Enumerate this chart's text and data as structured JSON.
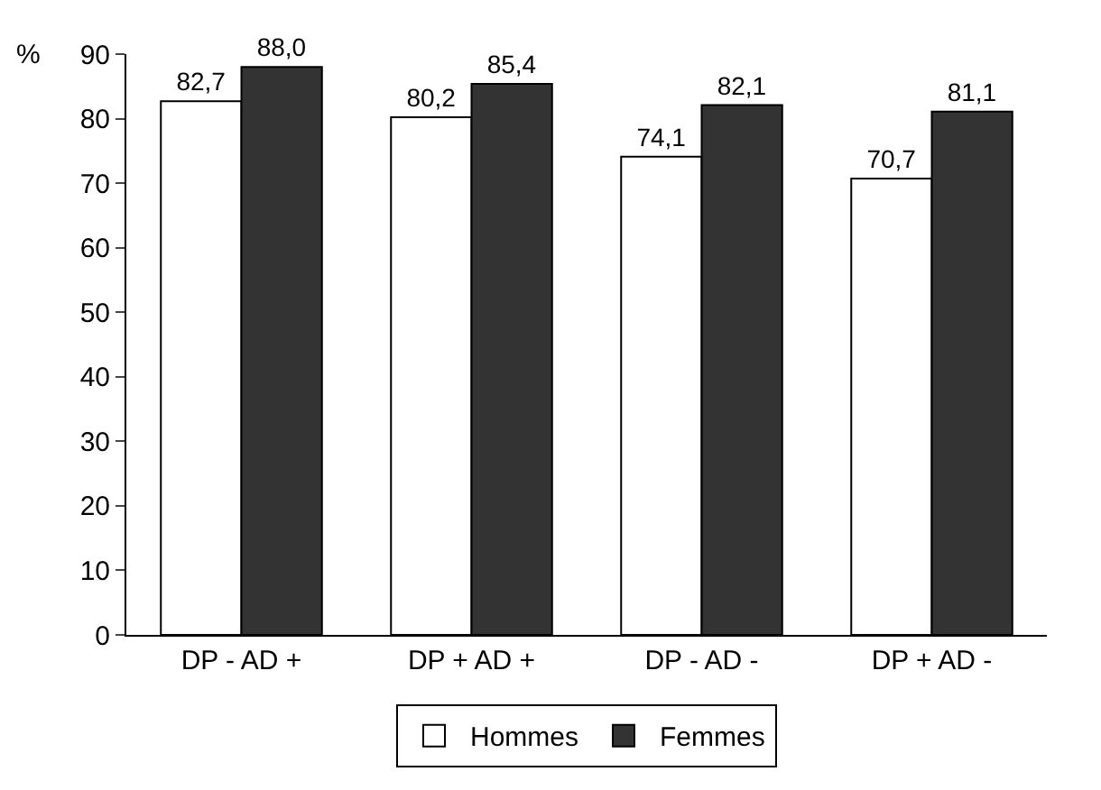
{
  "chart_data": {
    "type": "bar",
    "ylabel": "%",
    "categories": [
      "DP - AD +",
      "DP + AD +",
      "DP - AD -",
      "DP + AD -"
    ],
    "series": [
      {
        "name": "Hommes",
        "color": "#ffffff",
        "values": [
          82.7,
          80.2,
          74.1,
          70.7
        ],
        "value_labels": [
          "82,7",
          "80,2",
          "74,1",
          "70,7"
        ]
      },
      {
        "name": "Femmes",
        "color": "#333333",
        "values": [
          88.0,
          85.4,
          82.1,
          81.1
        ],
        "value_labels": [
          "88,0",
          "85,4",
          "82,1",
          "81,1"
        ]
      }
    ],
    "ylim": [
      0,
      90
    ],
    "yticks": [
      0,
      10,
      20,
      30,
      40,
      50,
      60,
      70,
      80,
      90
    ],
    "grid": false,
    "legend": "bottom"
  }
}
